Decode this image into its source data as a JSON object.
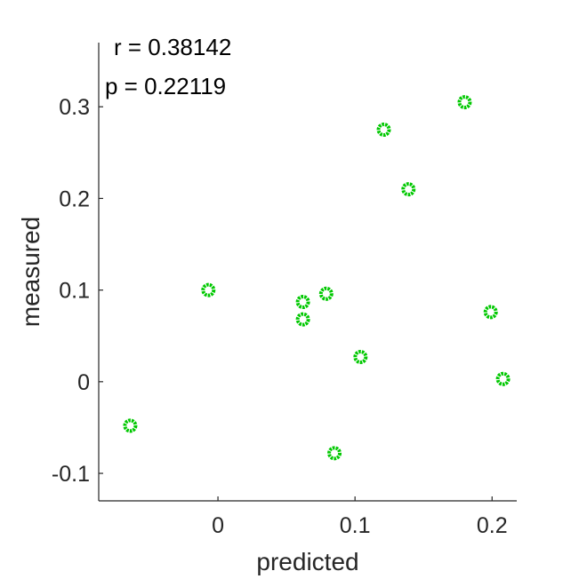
{
  "chart_data": {
    "type": "scatter",
    "xlabel": "predicted",
    "ylabel": "measured",
    "xlim": [
      -0.087,
      0.218
    ],
    "ylim": [
      -0.13,
      0.37
    ],
    "xticks": [
      0,
      0.1,
      0.2
    ],
    "xtick_labels": [
      "0",
      "0.1",
      "0.2"
    ],
    "yticks": [
      -0.1,
      0,
      0.1,
      0.2,
      0.3
    ],
    "ytick_labels": [
      "-0.1",
      "0",
      "0.1",
      "0.2",
      "0.3"
    ],
    "grid": false,
    "annotations": [
      "r = 0.38142",
      "p = 0.22119"
    ],
    "marker_color": "#00c800",
    "series": [
      {
        "points": [
          {
            "x": -0.064,
            "y": -0.048
          },
          {
            "x": -0.007,
            "y": 0.1
          },
          {
            "x": 0.062,
            "y": 0.087
          },
          {
            "x": 0.062,
            "y": 0.068
          },
          {
            "x": 0.079,
            "y": 0.096
          },
          {
            "x": 0.085,
            "y": -0.078
          },
          {
            "x": 0.104,
            "y": 0.027
          },
          {
            "x": 0.121,
            "y": 0.275
          },
          {
            "x": 0.139,
            "y": 0.21
          },
          {
            "x": 0.18,
            "y": 0.305
          },
          {
            "x": 0.199,
            "y": 0.076
          },
          {
            "x": 0.208,
            "y": 0.003
          }
        ]
      }
    ]
  }
}
